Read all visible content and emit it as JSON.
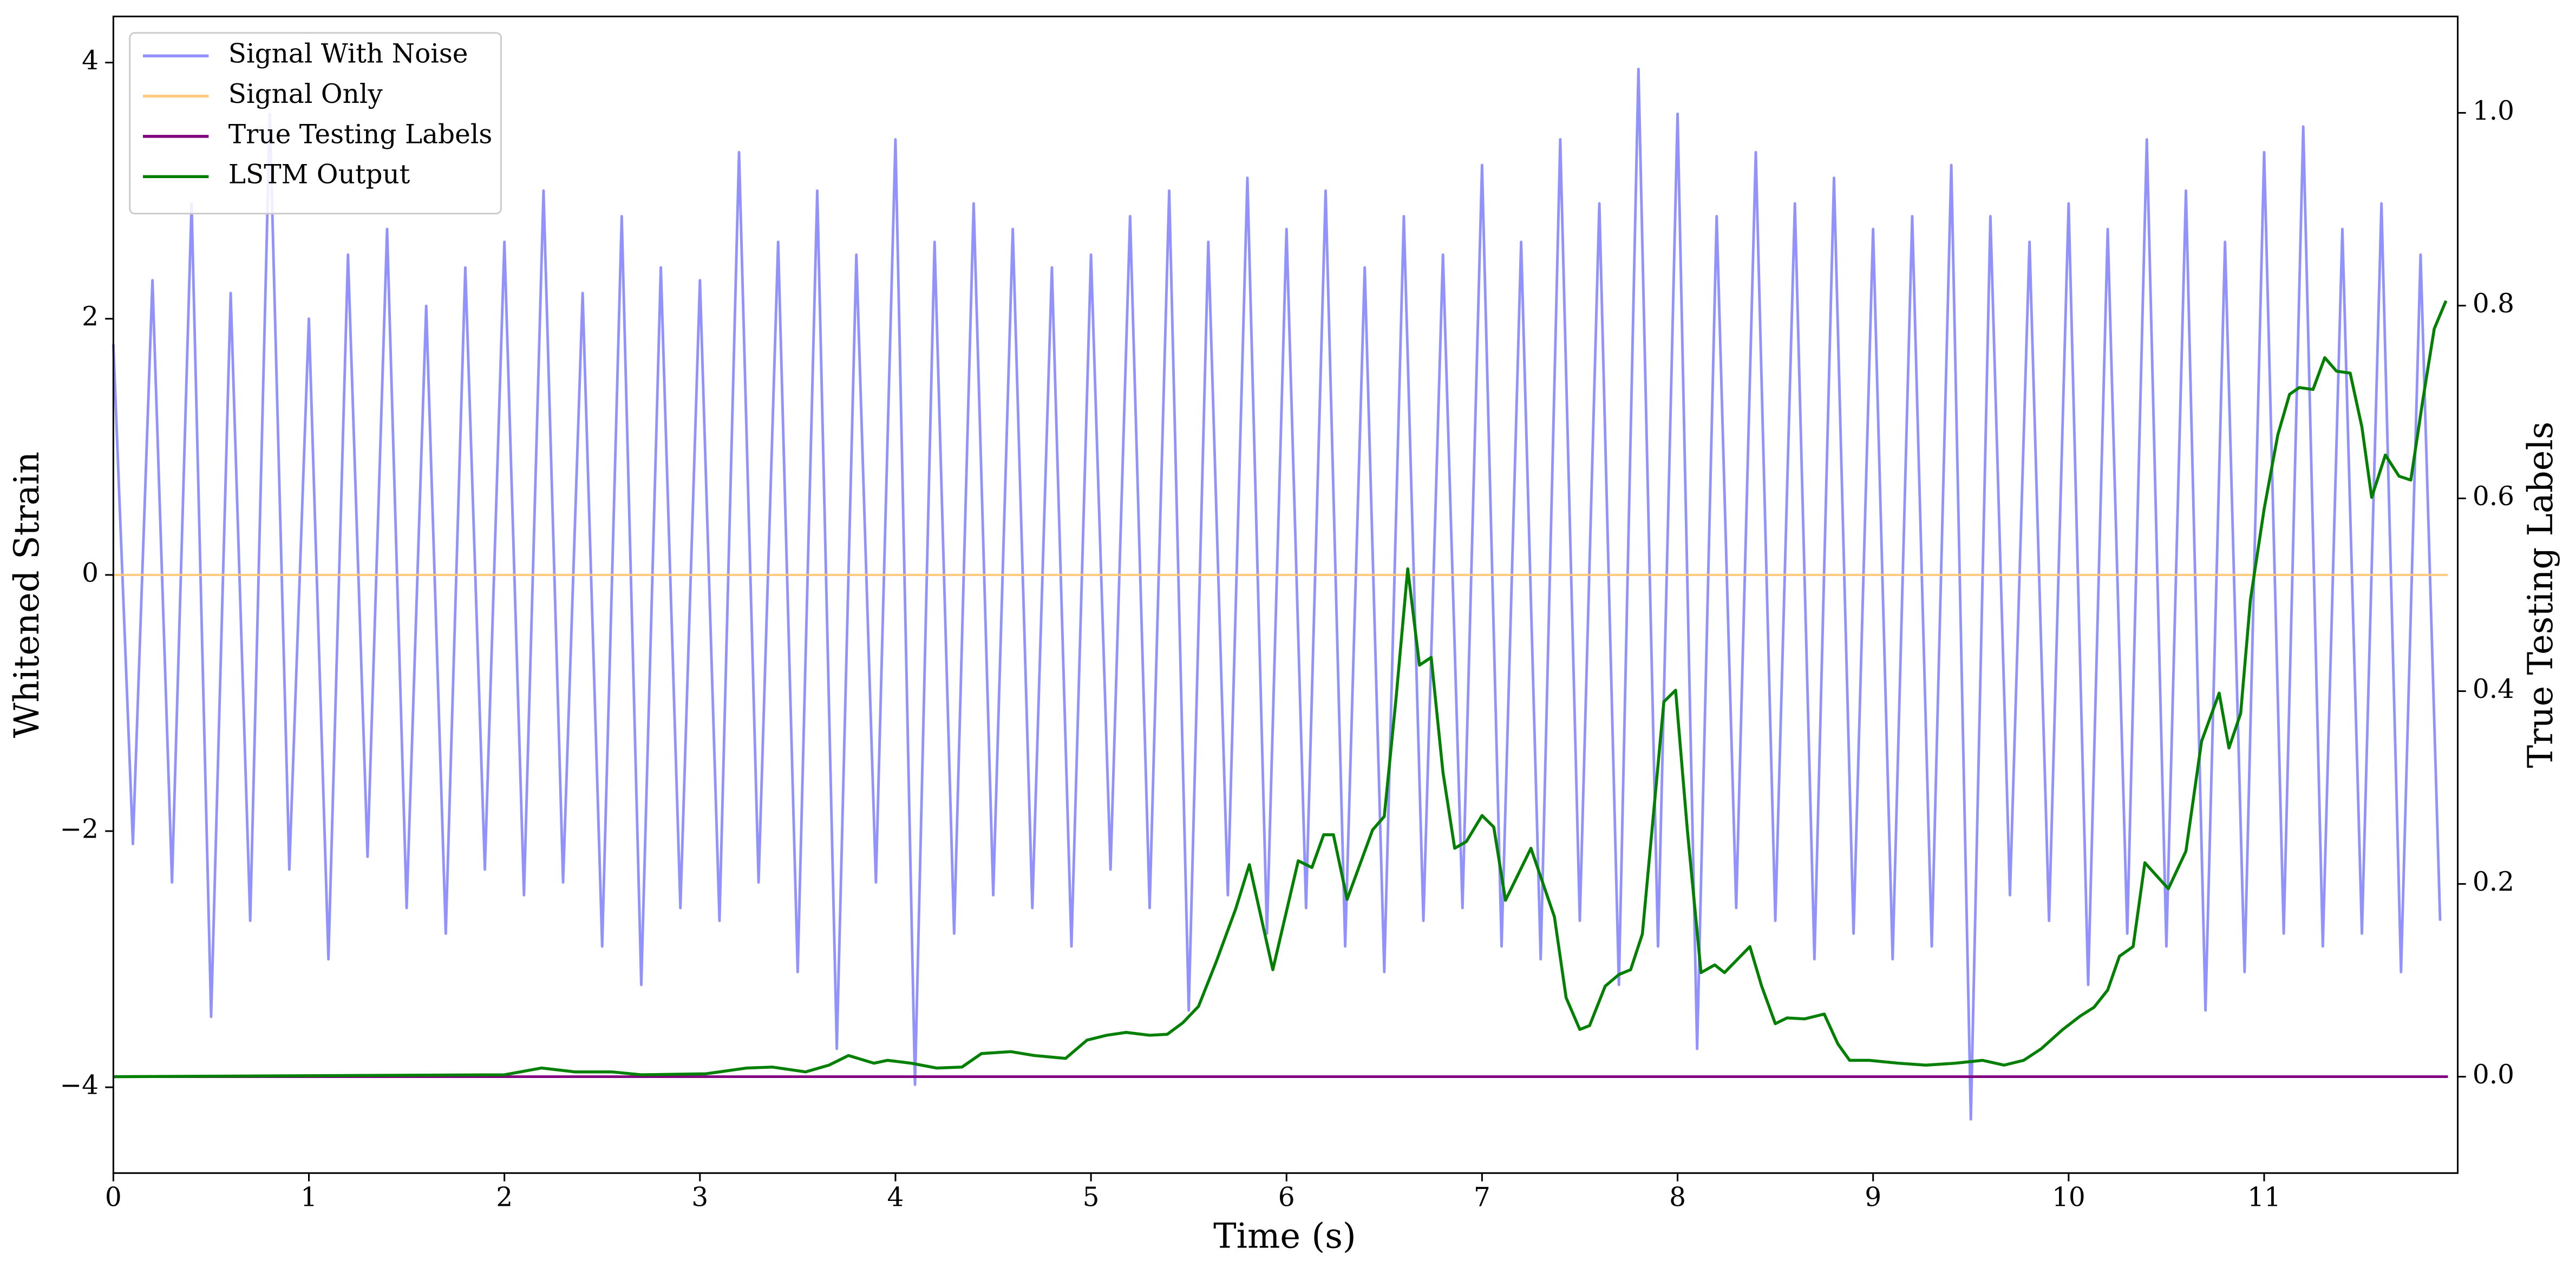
{
  "chart_data": {
    "type": "line",
    "xlabel": "Time (s)",
    "ylabel": "Whitened Strain",
    "y2label": "True Testing Labels",
    "xlim": [
      0,
      11.99
    ],
    "ylim": [
      -4.67,
      4.36
    ],
    "y2lim": [
      -0.1,
      1.1
    ],
    "xticks": [
      0,
      1,
      2,
      3,
      4,
      5,
      6,
      7,
      8,
      9,
      10,
      11
    ],
    "yticks": [
      {
        "value": -4,
        "label": "−4"
      },
      {
        "value": -2,
        "label": "−2"
      },
      0,
      2,
      4
    ],
    "y2ticks": [
      {
        "value": 0,
        "label": "0.0"
      },
      0.2,
      0.4,
      0.6,
      0.8,
      {
        "value": 1,
        "label": "1.0"
      }
    ],
    "legend": "upper left",
    "series": [
      {
        "name": "Signal With Noise",
        "color": "#7f7ffc",
        "axis": "y",
        "x": [
          0,
          0.1,
          0.2,
          0.3,
          0.4,
          0.5,
          0.6,
          0.7,
          0.8,
          0.9,
          1,
          1.1,
          1.2,
          1.3,
          1.4,
          1.5,
          1.6,
          1.7,
          1.8,
          1.9,
          2,
          2.1,
          2.2,
          2.3,
          2.4,
          2.5,
          2.6,
          2.7,
          2.8,
          2.9,
          3,
          3.1,
          3.2,
          3.3,
          3.4,
          3.5,
          3.6,
          3.7,
          3.8,
          3.9,
          4,
          4.1,
          4.2,
          4.3,
          4.4,
          4.5,
          4.6,
          4.7,
          4.8,
          4.9,
          5,
          5.1,
          5.2,
          5.3,
          5.4,
          5.5,
          5.6,
          5.7,
          5.8,
          5.9,
          6,
          6.1,
          6.2,
          6.3,
          6.4,
          6.5,
          6.6,
          6.7,
          6.8,
          6.9,
          7,
          7.1,
          7.2,
          7.3,
          7.4,
          7.5,
          7.6,
          7.7,
          7.8,
          7.9,
          8,
          8.1,
          8.2,
          8.3,
          8.4,
          8.5,
          8.6,
          8.7,
          8.8,
          8.9,
          9,
          9.1,
          9.2,
          9.3,
          9.4,
          9.5,
          9.6,
          9.7,
          9.8,
          9.9,
          10,
          10.1,
          10.2,
          10.3,
          10.4,
          10.5,
          10.6,
          10.7,
          10.8,
          10.9,
          11,
          11.1,
          11.2,
          11.3,
          11.4,
          11.5,
          11.6,
          11.7,
          11.8,
          11.9
        ],
        "values": [
          1.8,
          -2.1,
          2.3,
          -2.4,
          2.9,
          -3.45,
          2.2,
          -2.7,
          3.6,
          -2.3,
          2.0,
          -3.0,
          2.5,
          -2.2,
          2.7,
          -2.6,
          2.1,
          -2.8,
          2.4,
          -2.3,
          2.6,
          -2.5,
          3.0,
          -2.4,
          2.2,
          -2.9,
          2.8,
          -3.2,
          2.4,
          -2.6,
          2.3,
          -2.7,
          3.3,
          -2.4,
          2.6,
          -3.1,
          3.0,
          -3.7,
          2.5,
          -2.4,
          3.4,
          -3.98,
          2.6,
          -2.8,
          2.9,
          -2.5,
          2.7,
          -2.6,
          2.4,
          -2.9,
          2.5,
          -2.3,
          2.8,
          -2.6,
          3.0,
          -3.4,
          2.6,
          -2.5,
          3.1,
          -2.8,
          2.7,
          -2.6,
          3.0,
          -2.9,
          2.4,
          -3.1,
          2.8,
          -2.7,
          2.5,
          -2.6,
          3.2,
          -2.9,
          2.6,
          -3.0,
          3.4,
          -2.7,
          2.9,
          -3.2,
          3.95,
          -2.9,
          3.6,
          -3.7,
          2.8,
          -2.6,
          3.3,
          -2.7,
          2.9,
          -3.0,
          3.1,
          -2.8,
          2.7,
          -3.0,
          2.8,
          -2.9,
          3.2,
          -4.25,
          2.8,
          -2.5,
          2.6,
          -2.7,
          2.9,
          -3.2,
          2.7,
          -2.8,
          3.4,
          -2.9,
          3.0,
          -3.4,
          2.6,
          -3.1,
          3.3,
          -2.8,
          3.5,
          -2.9,
          2.7,
          -2.8,
          2.9,
          -3.1,
          2.5,
          -2.7
        ]
      },
      {
        "name": "Signal Only",
        "color": "#ffc774",
        "axis": "y",
        "x": [
          0,
          11.94
        ],
        "values": [
          0,
          0
        ]
      },
      {
        "name": "True Testing Labels",
        "color": "#800080",
        "axis": "y2",
        "x": [
          0,
          11.94
        ],
        "values": [
          0,
          0
        ]
      },
      {
        "name": "LSTM Output",
        "color": "#007f00",
        "axis": "y2",
        "x": [
          0,
          2.0,
          2.19,
          2.36,
          2.55,
          2.7,
          3.03,
          3.24,
          3.37,
          3.54,
          3.66,
          3.76,
          3.89,
          3.96,
          4.08,
          4.21,
          4.34,
          4.44,
          4.59,
          4.71,
          4.87,
          4.98,
          5.08,
          5.18,
          5.3,
          5.39,
          5.47,
          5.55,
          5.64,
          5.74,
          5.81,
          5.93,
          6.06,
          6.13,
          6.19,
          6.24,
          6.31,
          6.44,
          6.5,
          6.56,
          6.62,
          6.68,
          6.74,
          6.8,
          6.86,
          6.92,
          7.0,
          7.06,
          7.12,
          7.25,
          7.37,
          7.43,
          7.5,
          7.55,
          7.63,
          7.7,
          7.76,
          7.82,
          7.93,
          7.99,
          8.05,
          8.12,
          8.19,
          8.24,
          8.37,
          8.43,
          8.5,
          8.56,
          8.65,
          8.75,
          8.82,
          8.88,
          8.98,
          9.13,
          9.27,
          9.42,
          9.56,
          9.67,
          9.77,
          9.86,
          9.97,
          10.06,
          10.13,
          10.2,
          10.26,
          10.33,
          10.39,
          10.51,
          10.6,
          10.68,
          10.77,
          10.82,
          10.88,
          10.93,
          11.0,
          11.07,
          11.13,
          11.18,
          11.25,
          11.31,
          11.37,
          11.44,
          11.5,
          11.55,
          11.62,
          11.69,
          11.75,
          11.81,
          11.87,
          11.93
        ],
        "values": [
          0,
          0.002,
          0.009,
          0.005,
          0.005,
          0.002,
          0.003,
          0.009,
          0.01,
          0.005,
          0.012,
          0.022,
          0.014,
          0.017,
          0.014,
          0.009,
          0.01,
          0.024,
          0.026,
          0.022,
          0.019,
          0.038,
          0.043,
          0.046,
          0.043,
          0.044,
          0.056,
          0.073,
          0.119,
          0.174,
          0.22,
          0.111,
          0.224,
          0.217,
          0.251,
          0.251,
          0.184,
          0.256,
          0.27,
          0.392,
          0.527,
          0.427,
          0.435,
          0.316,
          0.237,
          0.244,
          0.271,
          0.259,
          0.183,
          0.237,
          0.166,
          0.082,
          0.049,
          0.053,
          0.094,
          0.106,
          0.111,
          0.148,
          0.389,
          0.401,
          0.256,
          0.108,
          0.116,
          0.108,
          0.135,
          0.094,
          0.055,
          0.061,
          0.06,
          0.065,
          0.034,
          0.017,
          0.017,
          0.014,
          0.012,
          0.014,
          0.017,
          0.012,
          0.017,
          0.029,
          0.049,
          0.063,
          0.072,
          0.09,
          0.125,
          0.135,
          0.222,
          0.195,
          0.234,
          0.348,
          0.398,
          0.341,
          0.377,
          0.495,
          0.589,
          0.666,
          0.708,
          0.715,
          0.713,
          0.746,
          0.732,
          0.73,
          0.674,
          0.601,
          0.645,
          0.623,
          0.619,
          0.7,
          0.776,
          0.805
        ]
      }
    ]
  }
}
